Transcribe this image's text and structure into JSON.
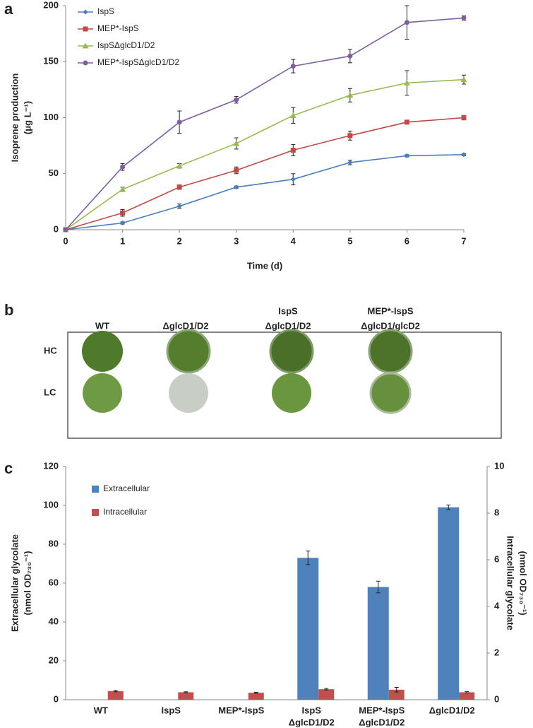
{
  "chart_data": [
    {
      "type": "line",
      "panel_label": "a",
      "xlabel": "Time (d)",
      "ylabel": [
        "Isoprene production",
        "(μg L⁻¹)"
      ],
      "x": [
        0,
        1,
        2,
        3,
        4,
        5,
        6,
        7
      ],
      "xlim": [
        0,
        7
      ],
      "xticks": [
        0,
        1,
        2,
        3,
        4,
        5,
        6,
        7
      ],
      "ylim": [
        0,
        200
      ],
      "yticks": [
        0,
        50,
        100,
        150,
        200
      ],
      "legend": "upper left",
      "series": [
        {
          "name": "IspS",
          "color": "#4a7ebb",
          "marker": "diamond",
          "values": [
            0,
            6,
            21,
            38,
            45,
            60,
            66,
            67
          ],
          "errors": [
            0,
            1,
            2,
            1,
            5,
            2,
            1,
            1
          ]
        },
        {
          "name": "MEP*-IspS",
          "color": "#be4b48",
          "marker": "square",
          "values": [
            0,
            15,
            38,
            53,
            71,
            84,
            96,
            100
          ],
          "errors": [
            0,
            3,
            2,
            3,
            5,
            4,
            1,
            2
          ]
        },
        {
          "name": "IspSΔglcD1/D2",
          "color": "#98b954",
          "marker": "triangle",
          "values": [
            0,
            36,
            57,
            77,
            102,
            120,
            131,
            134
          ],
          "errors": [
            0,
            2,
            2,
            5,
            7,
            6,
            11,
            4
          ]
        },
        {
          "name": "MEP*-IspSΔglcD1/D2",
          "color": "#7d60a0",
          "marker": "circle",
          "values": [
            0,
            56,
            96,
            116,
            146,
            155,
            185,
            189
          ],
          "errors": [
            0,
            3,
            10,
            3,
            6,
            6,
            15,
            2
          ]
        }
      ]
    },
    {
      "type": "bar",
      "panel_label": "c",
      "ylabel": [
        "Extracellular glycolate",
        "(nmol OD₇₃₀⁻¹)"
      ],
      "y2label": [
        "Intracellular glycolate",
        "(nmol OD₇₃₀⁻¹)"
      ],
      "categories": [
        [
          "WT"
        ],
        [
          "IspS"
        ],
        [
          "MEP*-IspS"
        ],
        [
          "IspS",
          "ΔglcD1/D2"
        ],
        [
          "MEP*-IspS",
          "ΔglcD1/D2"
        ],
        [
          "ΔglcD1/D2"
        ]
      ],
      "ylim": [
        0,
        120
      ],
      "yticks": [
        0,
        20,
        40,
        60,
        80,
        100,
        120
      ],
      "y2lim": [
        0,
        10
      ],
      "y2ticks": [
        0,
        2,
        4,
        6,
        8,
        10
      ],
      "legend": "upper left",
      "series": [
        {
          "name": "Extracellular",
          "color": "#4f81bd",
          "axis": "y",
          "values": [
            0,
            0,
            0,
            73,
            58,
            99
          ],
          "errors": [
            0,
            0,
            0,
            3.5,
            3,
            1.2
          ]
        },
        {
          "name": "Intracellular",
          "color": "#c0504d",
          "axis": "y2",
          "values": [
            0.37,
            0.32,
            0.3,
            0.45,
            0.43,
            0.32
          ],
          "errors": [
            0.03,
            0.02,
            0.02,
            0.03,
            0.1,
            0.03
          ]
        }
      ]
    }
  ],
  "panel_b": {
    "panel_label": "b",
    "columns": [
      [
        "WT"
      ],
      [
        "ΔglcD1/D2"
      ],
      [
        "IspS",
        "ΔglcD1/D2"
      ],
      [
        "MEP*-IspS",
        "ΔglcD1/glcD2"
      ]
    ],
    "rows": [
      "HC",
      "LC"
    ]
  }
}
